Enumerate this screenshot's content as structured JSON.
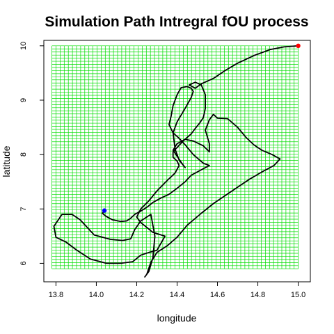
{
  "chart_data": {
    "type": "line",
    "title": "Simulation Path Intregral fOU process",
    "xlabel": "longitude",
    "ylabel": "latitude",
    "xlim": [
      13.74,
      15.06
    ],
    "ylim": [
      5.66,
      10.1
    ],
    "xticks": [
      "13.8",
      "14.0",
      "14.2",
      "14.4",
      "14.6",
      "14.8",
      "15.0"
    ],
    "yticks": [
      "6",
      "7",
      "8",
      "9",
      "10"
    ],
    "grid": true,
    "grid_color": "#00dd00",
    "grid_region": {
      "x": [
        13.78,
        15.0
      ],
      "y": [
        5.9,
        10.0
      ]
    },
    "grid_steps": {
      "x": 60,
      "y": 72
    },
    "path_color": "#000000",
    "start_point": {
      "x": 15.0,
      "y": 10.0,
      "color": "#ff0000"
    },
    "end_point": {
      "x": 14.04,
      "y": 6.97,
      "color": "#0000ff"
    },
    "series": [
      {
        "x": [
          15.0,
          14.93,
          14.86,
          14.78,
          14.7,
          14.64,
          14.58,
          14.55,
          14.52,
          14.49,
          14.46,
          14.49,
          14.52,
          14.54,
          14.54,
          14.53,
          14.51,
          14.49,
          14.47,
          14.43,
          14.4,
          14.38,
          14.38,
          14.4,
          14.41,
          14.39,
          14.35,
          14.3,
          14.26,
          14.22,
          14.2,
          14.22,
          14.28,
          14.34,
          14.3,
          14.26,
          14.22,
          14.18,
          14.12,
          14.05,
          13.97,
          13.9,
          13.85,
          13.8,
          13.79,
          13.83,
          13.88,
          13.92,
          13.99,
          14.07,
          14.13,
          14.17,
          14.19,
          14.22,
          14.27,
          14.29,
          14.28,
          14.26,
          14.24,
          14.25,
          14.27,
          14.3,
          14.35,
          14.4,
          14.45,
          14.52,
          14.58,
          14.64,
          14.7,
          14.76,
          14.82,
          14.88,
          14.91,
          14.87,
          14.82,
          14.78,
          14.74,
          14.7,
          14.65,
          14.6,
          14.58,
          14.56,
          14.54,
          14.56,
          14.56,
          14.53,
          14.48,
          14.44,
          14.4,
          14.38,
          14.42,
          14.44,
          14.41,
          14.39,
          14.38,
          14.4,
          14.44,
          14.47,
          14.48,
          14.47,
          14.45,
          14.42,
          14.4,
          14.38,
          14.37,
          14.36,
          14.38,
          14.41,
          14.44,
          14.48,
          14.53,
          14.56,
          14.52,
          14.47,
          14.44,
          14.4,
          14.36,
          14.32,
          14.28,
          14.25,
          14.22,
          14.19,
          14.17,
          14.15,
          14.12,
          14.08,
          14.05,
          14.03,
          14.04
        ],
        "y": [
          10.0,
          9.98,
          9.93,
          9.82,
          9.68,
          9.55,
          9.4,
          9.35,
          9.3,
          9.22,
          9.28,
          9.33,
          9.28,
          9.1,
          8.85,
          8.68,
          8.57,
          8.48,
          8.38,
          8.25,
          8.13,
          8.05,
          7.95,
          7.88,
          7.8,
          7.66,
          7.52,
          7.33,
          7.15,
          7.0,
          6.85,
          6.75,
          6.57,
          6.5,
          6.24,
          6.2,
          6.15,
          6.03,
          6.0,
          6.0,
          6.08,
          6.25,
          6.39,
          6.48,
          6.68,
          6.9,
          6.9,
          6.8,
          6.52,
          6.44,
          6.42,
          6.45,
          6.62,
          6.78,
          6.9,
          6.5,
          6.1,
          5.85,
          5.75,
          5.8,
          6.02,
          6.2,
          6.32,
          6.48,
          6.7,
          6.92,
          7.1,
          7.25,
          7.4,
          7.55,
          7.68,
          7.8,
          7.92,
          8.0,
          8.08,
          8.18,
          8.32,
          8.5,
          8.66,
          8.67,
          8.74,
          8.64,
          8.45,
          8.2,
          8.05,
          8.16,
          8.25,
          8.28,
          8.2,
          8.08,
          7.86,
          7.76,
          7.9,
          8.1,
          8.4,
          8.6,
          8.85,
          9.05,
          9.16,
          9.22,
          9.25,
          9.23,
          9.1,
          8.9,
          8.7,
          8.55,
          8.4,
          8.3,
          8.18,
          8.0,
          7.84,
          7.8,
          7.72,
          7.62,
          7.5,
          7.38,
          7.27,
          7.2,
          7.12,
          7.03,
          6.96,
          6.9,
          6.83,
          6.78,
          6.77,
          6.8,
          6.86,
          6.92,
          6.97
        ]
      }
    ]
  }
}
